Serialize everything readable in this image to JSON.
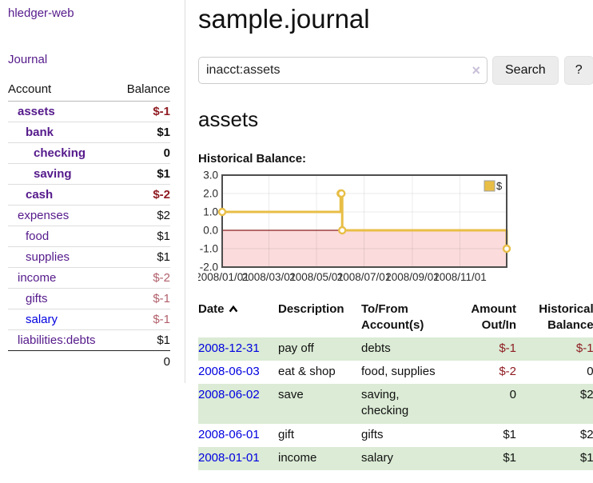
{
  "app": {
    "title": "hledger-web"
  },
  "nav": {
    "journal_label": "Journal"
  },
  "sidebar": {
    "accounts_header": {
      "account": "Account",
      "balance": "Balance"
    },
    "accounts": [
      {
        "name": "assets",
        "depth": 1,
        "bold": true,
        "balance": "$-1",
        "balance_class": "neg-bold"
      },
      {
        "name": "bank",
        "depth": 2,
        "bold": true,
        "balance": "$1",
        "balance_class": "bold"
      },
      {
        "name": "checking",
        "depth": 3,
        "bold": true,
        "balance": "0",
        "balance_class": "bold"
      },
      {
        "name": "saving",
        "depth": 3,
        "bold": true,
        "balance": "$1",
        "balance_class": "bold"
      },
      {
        "name": "cash",
        "depth": 2,
        "bold": true,
        "balance": "$-2",
        "balance_class": "neg-bold"
      },
      {
        "name": "expenses",
        "depth": 1,
        "bold": false,
        "balance": "$2",
        "balance_class": "plain"
      },
      {
        "name": "food",
        "depth": 2,
        "bold": false,
        "balance": "$1",
        "balance_class": "plain"
      },
      {
        "name": "supplies",
        "depth": 2,
        "bold": false,
        "balance": "$1",
        "balance_class": "plain"
      },
      {
        "name": "income",
        "depth": 1,
        "bold": false,
        "balance": "$-2",
        "balance_class": "neg-muted"
      },
      {
        "name": "gifts",
        "depth": 2,
        "bold": false,
        "balance": "$-1",
        "balance_class": "neg-muted"
      },
      {
        "name": "salary",
        "depth": 2,
        "bold": false,
        "balance": "$-1",
        "balance_class": "neg-muted",
        "link_style": "blue"
      },
      {
        "name": "liabilities:debts",
        "depth": 1,
        "bold": false,
        "balance": "$1",
        "balance_class": "plain"
      }
    ],
    "total": "0"
  },
  "header": {
    "title": "sample.journal"
  },
  "search": {
    "query": "inacct:assets",
    "clear_icon": "×",
    "button_label": "Search",
    "help_button_label": "?"
  },
  "account_page": {
    "heading": "assets",
    "chart_label": "Historical Balance:"
  },
  "chart_data": {
    "type": "line",
    "style": "step-after",
    "title": "Historical Balance",
    "series": [
      {
        "name": "$",
        "color": "#e8be46",
        "points": [
          {
            "date": "2008-01-01",
            "value": 1
          },
          {
            "date": "2008-06-01",
            "value": 2
          },
          {
            "date": "2008-06-02",
            "value": 2
          },
          {
            "date": "2008-06-03",
            "value": 0
          },
          {
            "date": "2008-12-31",
            "value": -1
          }
        ]
      }
    ],
    "x_range": [
      "2008-01-01",
      "2008-12-31"
    ],
    "x_tick_labels": [
      "2008/01/01",
      "2008/03/01",
      "2008/05/01",
      "2008/07/01",
      "2008/09/01",
      "2008/11/01"
    ],
    "y_ticks": [
      "3.0",
      "2.0",
      "1.0",
      "0.0",
      "-1.0",
      "-2.0"
    ],
    "ylim": [
      -2,
      3
    ],
    "grid": true,
    "legend": {
      "label": "$",
      "position": "top-right"
    },
    "colors": {
      "line": "#e8be46",
      "marker_fill": "#ffffff",
      "negative_region": "#fbdbdb",
      "zero_line": "#8b1d1d",
      "plot_border": "#4d4d4d",
      "gridline": "rgba(0,0,0,0.08)"
    }
  },
  "register": {
    "columns": {
      "date": "Date",
      "sort_icon": "chevron-up",
      "description": "Description",
      "accounts": "To/From Account(s)",
      "amount": "Amount Out/In",
      "balance": "Historical Balance"
    },
    "rows": [
      {
        "date": "2008-12-31",
        "description": "pay off",
        "accounts": "debts",
        "amount": "$-1",
        "amount_negative": true,
        "balance": "$-1",
        "balance_negative": true,
        "green": true
      },
      {
        "date": "2008-06-03",
        "description": "eat & shop",
        "accounts": "food, supplies",
        "amount": "$-2",
        "amount_negative": true,
        "balance": "0",
        "balance_negative": false,
        "green": false
      },
      {
        "date": "2008-06-02",
        "description": "save",
        "accounts": "saving, checking",
        "amount": "0",
        "amount_negative": false,
        "balance": "$2",
        "balance_negative": false,
        "green": true
      },
      {
        "date": "2008-06-01",
        "description": "gift",
        "accounts": "gifts",
        "amount": "$1",
        "amount_negative": false,
        "balance": "$2",
        "balance_negative": false,
        "green": false
      },
      {
        "date": "2008-01-01",
        "description": "income",
        "accounts": "salary",
        "amount": "$1",
        "amount_negative": false,
        "balance": "$1",
        "balance_negative": false,
        "green": true
      }
    ]
  },
  "colors": {
    "link_purple": "#551A8B",
    "link_blue": "#0000E0",
    "negative_red": "#8f1d23",
    "negative_muted": "#b2606c",
    "row_green": "#dbebd5"
  }
}
